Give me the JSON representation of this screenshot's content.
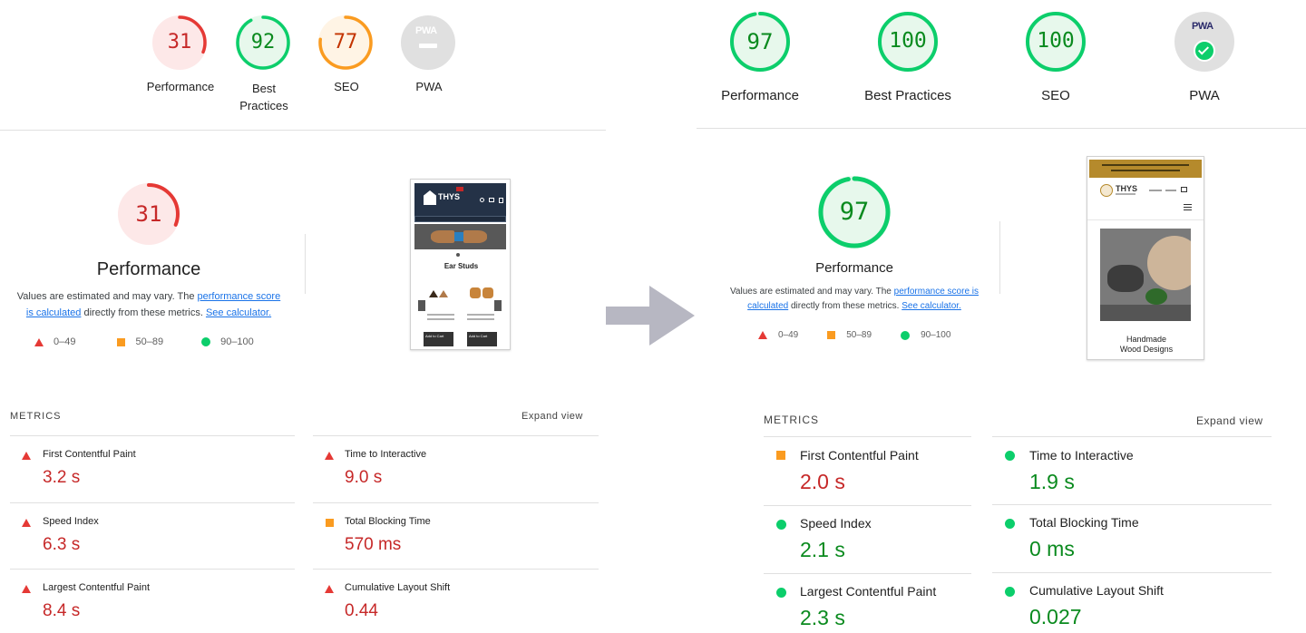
{
  "colors": {
    "fail": "#e53935",
    "average": "#fa9b20",
    "pass": "#0cce6b",
    "fail_text": "#c62828",
    "pass_text": "#0a8a1e",
    "link": "#1a73e8"
  },
  "before": {
    "gauges": [
      {
        "score": "31",
        "label": "Performance",
        "status": "fail",
        "pct": 31
      },
      {
        "score": "92",
        "label": "Best Practices",
        "label_line1": "Best",
        "label_line2": "Practices",
        "status": "pass",
        "pct": 92
      },
      {
        "score": "77",
        "label": "SEO",
        "status": "average",
        "pct": 77
      },
      {
        "score": "",
        "label": "PWA",
        "status": "na",
        "pct": 0
      }
    ],
    "main": {
      "score": "31",
      "title": "Performance",
      "note_1": "Values are estimated and may vary. The ",
      "note_link_1": "performance score",
      "note_link_1b": "is calculated",
      "note_2": " directly from these metrics. ",
      "note_link_2": "See calculator.",
      "legend": [
        "0–49",
        "50–89",
        "90–100"
      ]
    },
    "thumbnail": {
      "brand": "THYS",
      "heading": "Ear Studs",
      "btn1": "Add to Cart",
      "btn2": "Add to Cart"
    },
    "metrics_header": "METRICS",
    "expand_view": "Expand view",
    "metrics": [
      {
        "name": "First Contentful Paint",
        "value": "3.2 s",
        "status": "fail"
      },
      {
        "name": "Time to Interactive",
        "value": "9.0 s",
        "status": "fail"
      },
      {
        "name": "Speed Index",
        "value": "6.3 s",
        "status": "fail"
      },
      {
        "name": "Total Blocking Time",
        "value": "570 ms",
        "status": "average"
      },
      {
        "name": "Largest Contentful Paint",
        "value": "8.4 s",
        "status": "fail"
      },
      {
        "name": "Cumulative Layout Shift",
        "value": "0.44",
        "status": "fail"
      }
    ]
  },
  "after": {
    "gauges": [
      {
        "score": "97",
        "label": "Performance",
        "status": "pass",
        "pct": 97
      },
      {
        "score": "100",
        "label": "Best Practices",
        "status": "pass",
        "pct": 100
      },
      {
        "score": "100",
        "label": "SEO",
        "status": "pass",
        "pct": 100
      },
      {
        "score": "",
        "label": "PWA",
        "status": "pwa-pass",
        "pct": 0
      }
    ],
    "main": {
      "score": "97",
      "title": "Performance",
      "note_1": "Values are estimated and may vary. The ",
      "note_link_1": "performance score is",
      "note_link_1b": "calculated",
      "note_2": " directly from these metrics. ",
      "note_link_2": "See calculator.",
      "legend": [
        "0–49",
        "50–89",
        "90–100"
      ]
    },
    "thumbnail": {
      "brand": "THYS",
      "caption_1": "Handmade",
      "caption_2": "Wood Designs"
    },
    "metrics_header": "METRICS",
    "expand_view": "Expand view",
    "metrics": [
      {
        "name": "First Contentful Paint",
        "value": "2.0 s",
        "status": "average"
      },
      {
        "name": "Time to Interactive",
        "value": "1.9 s",
        "status": "pass"
      },
      {
        "name": "Speed Index",
        "value": "2.1 s",
        "status": "pass"
      },
      {
        "name": "Total Blocking Time",
        "value": "0 ms",
        "status": "pass"
      },
      {
        "name": "Largest Contentful Paint",
        "value": "2.3 s",
        "status": "pass"
      },
      {
        "name": "Cumulative Layout Shift",
        "value": "0.027",
        "status": "pass"
      }
    ]
  },
  "pwa_badge": "PWA"
}
